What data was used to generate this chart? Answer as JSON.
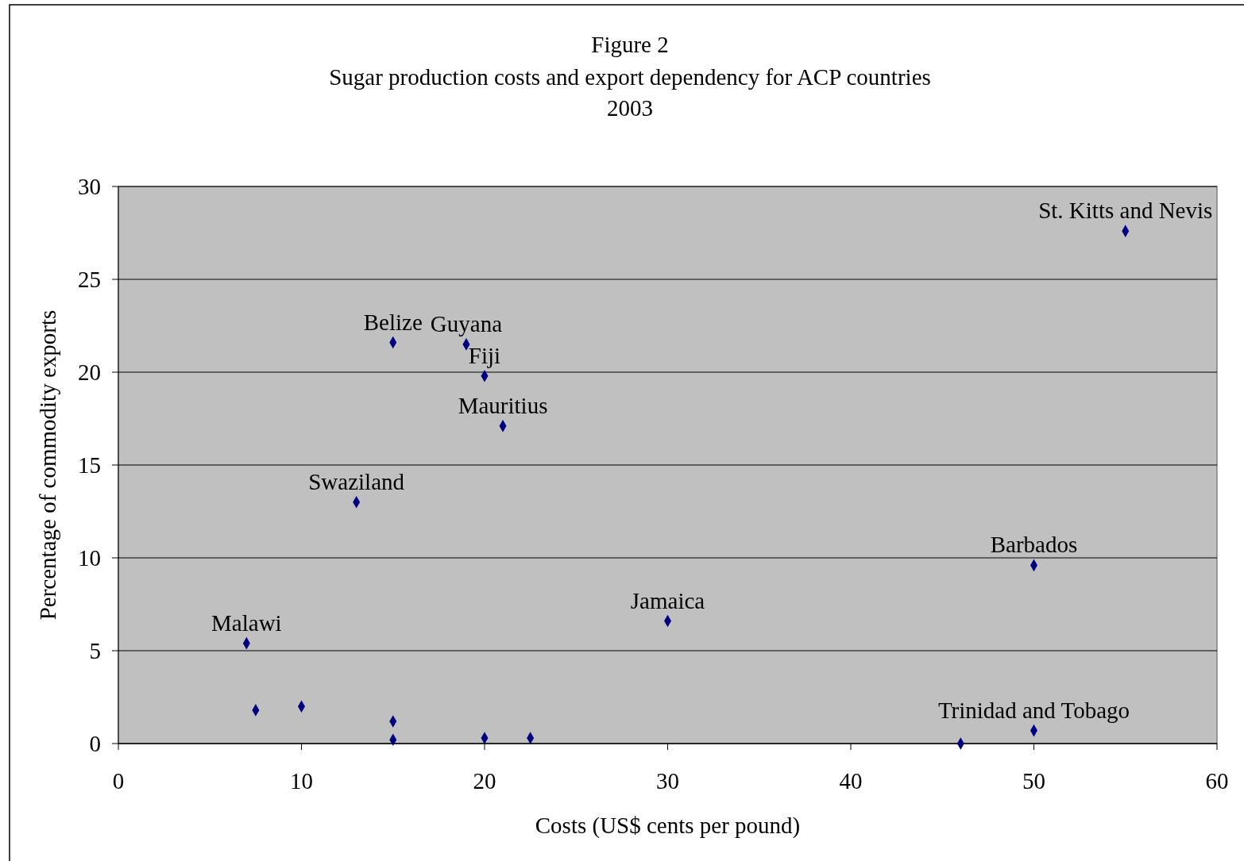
{
  "chart_data": {
    "type": "scatter",
    "title": "Figure 2",
    "subtitle": "Sugar production costs and export dependency for ACP countries\n2003",
    "xlabel": "Costs (US$ cents per pound)",
    "ylabel": "Percentage of commodity exports",
    "x": [
      7,
      15,
      19,
      20,
      21,
      13,
      30,
      50,
      55,
      50,
      7.5,
      10,
      15,
      15,
      20,
      22.5,
      46
    ],
    "series": [
      {
        "color": "#000080",
        "values": [
          5.4,
          21.6,
          21.5,
          19.8,
          17.1,
          13,
          6.6,
          9.6,
          27.6,
          0.7,
          1.8,
          2.0,
          1.2,
          0.2,
          0.3,
          0.3,
          0
        ]
      }
    ],
    "xlim": [
      0,
      60
    ],
    "xticks": [
      0,
      10,
      20,
      30,
      40,
      50,
      60
    ],
    "ylim": [
      0,
      30
    ],
    "yticks": [
      0,
      5,
      10,
      15,
      20,
      25,
      30
    ],
    "grid": "y",
    "marker": "diamond",
    "annotations": [
      {
        "text": "Malawi",
        "x": 7,
        "y": 5.4
      },
      {
        "text": "Belize",
        "x": 15,
        "y": 21.6
      },
      {
        "text": "Guyana",
        "x": 19,
        "y": 21.5
      },
      {
        "text": "Fiji",
        "x": 20,
        "y": 19.8
      },
      {
        "text": "Mauritius",
        "x": 21,
        "y": 17.1
      },
      {
        "text": "Swaziland",
        "x": 13,
        "y": 13
      },
      {
        "text": "Jamaica",
        "x": 30,
        "y": 6.6
      },
      {
        "text": "Barbados",
        "x": 50,
        "y": 9.6
      },
      {
        "text": "St. Kitts and Nevis",
        "x": 55,
        "y": 27.6
      },
      {
        "text": "Trinidad and Tobago",
        "x": 50,
        "y": 0.7
      }
    ]
  }
}
